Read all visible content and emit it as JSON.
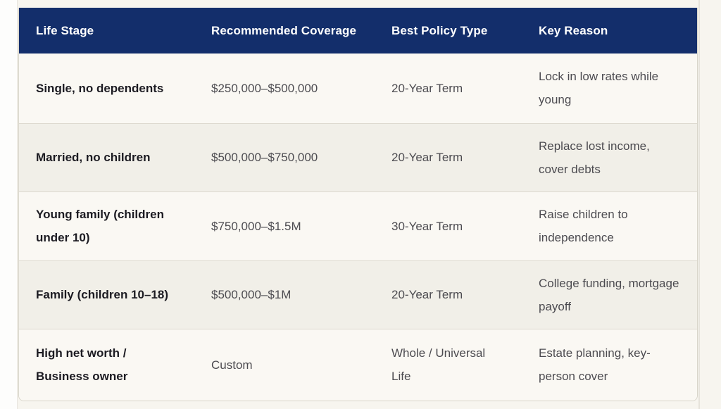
{
  "page": {
    "background_color": "#f7f5ef",
    "left_gutter_color": "#fdfdfc"
  },
  "table": {
    "header_bg_color": "#132e6b",
    "header_text_color": "#ffffff",
    "row_colors": [
      "#faf8f3",
      "#f1efe8"
    ],
    "columns": [
      "Life Stage",
      "Recommended Coverage",
      "Best Policy Type",
      "Key Reason"
    ],
    "rows": [
      {
        "life_stage": "Single, no dependents",
        "coverage": "$250,000–$500,000",
        "policy_type": "20-Year Term",
        "key_reason": "Lock in low rates while young"
      },
      {
        "life_stage": "Married, no children",
        "coverage": "$500,000–$750,000",
        "policy_type": "20-Year Term",
        "key_reason": "Replace lost income, cover debts"
      },
      {
        "life_stage": "Young family (children under 10)",
        "coverage": "$750,000–$1.5M",
        "policy_type": "30-Year Term",
        "key_reason": "Raise children to independence"
      },
      {
        "life_stage": "Family (children 10–18)",
        "coverage": "$500,000–$1M",
        "policy_type": "20-Year Term",
        "key_reason": "College funding, mortgage payoff"
      },
      {
        "life_stage": "High net worth / Business owner",
        "coverage": "Custom",
        "policy_type": "Whole / Universal Life",
        "key_reason": "Estate planning, key-person cover"
      }
    ]
  }
}
